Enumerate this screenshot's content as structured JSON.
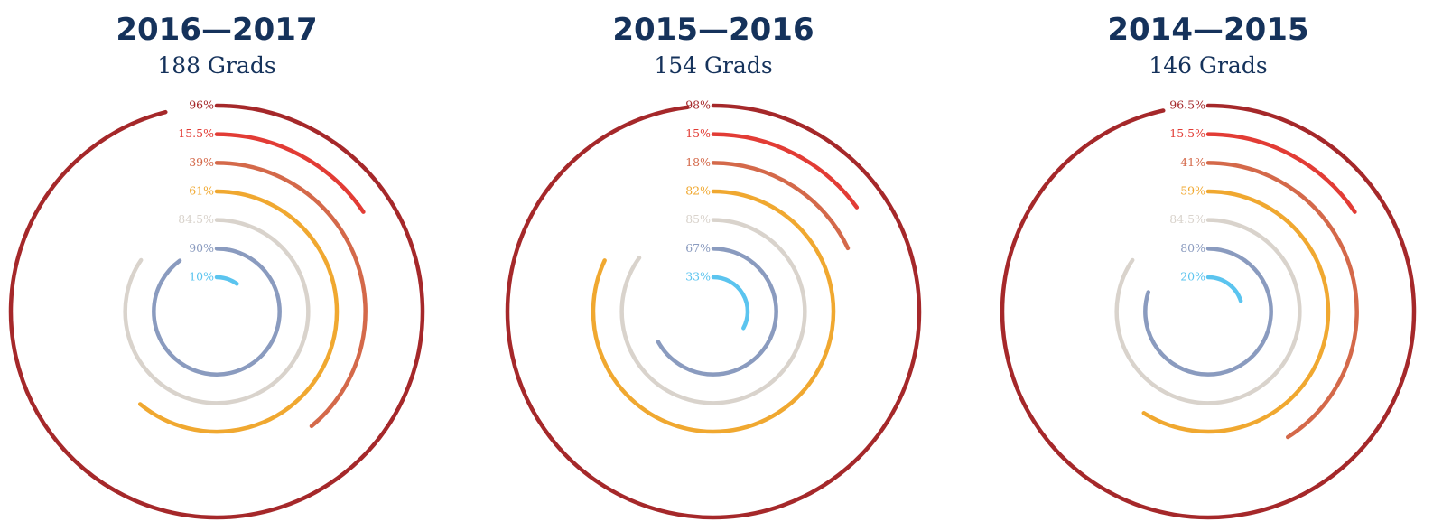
{
  "chart_data": [
    {
      "type": "radial_bar",
      "title": "2016—2017",
      "subtitle": "188 Grads",
      "values": [
        96,
        15.5,
        39,
        61,
        84.5,
        90,
        10
      ],
      "value_labels": [
        "96%",
        "15.5%",
        "39%",
        "61%",
        "84.5%",
        "90%",
        "10%"
      ],
      "colors": [
        "#a5282a",
        "#e23c35",
        "#d4694a",
        "#f0a830",
        "#d9d3cc",
        "#8a9bbf",
        "#5bc4ef"
      ]
    },
    {
      "type": "radial_bar",
      "title": "2015—2016",
      "subtitle": "154 Grads",
      "values": [
        98,
        15,
        18,
        82,
        85,
        67,
        33
      ],
      "value_labels": [
        "98%",
        "15%",
        "18%",
        "82%",
        "85%",
        "67%",
        "33%"
      ],
      "colors": [
        "#a5282a",
        "#e23c35",
        "#d4694a",
        "#f0a830",
        "#d9d3cc",
        "#8a9bbf",
        "#5bc4ef"
      ]
    },
    {
      "type": "radial_bar",
      "title": "2014—2015",
      "subtitle": "146 Grads",
      "values": [
        96.5,
        15.5,
        41,
        59,
        84.5,
        80,
        20
      ],
      "value_labels": [
        "96.5%",
        "15.5%",
        "41%",
        "59%",
        "84.5%",
        "80%",
        "20%"
      ],
      "colors": [
        "#a5282a",
        "#e23c35",
        "#d4694a",
        "#f0a830",
        "#d9d3cc",
        "#8a9bbf",
        "#5bc4ef"
      ]
    }
  ]
}
